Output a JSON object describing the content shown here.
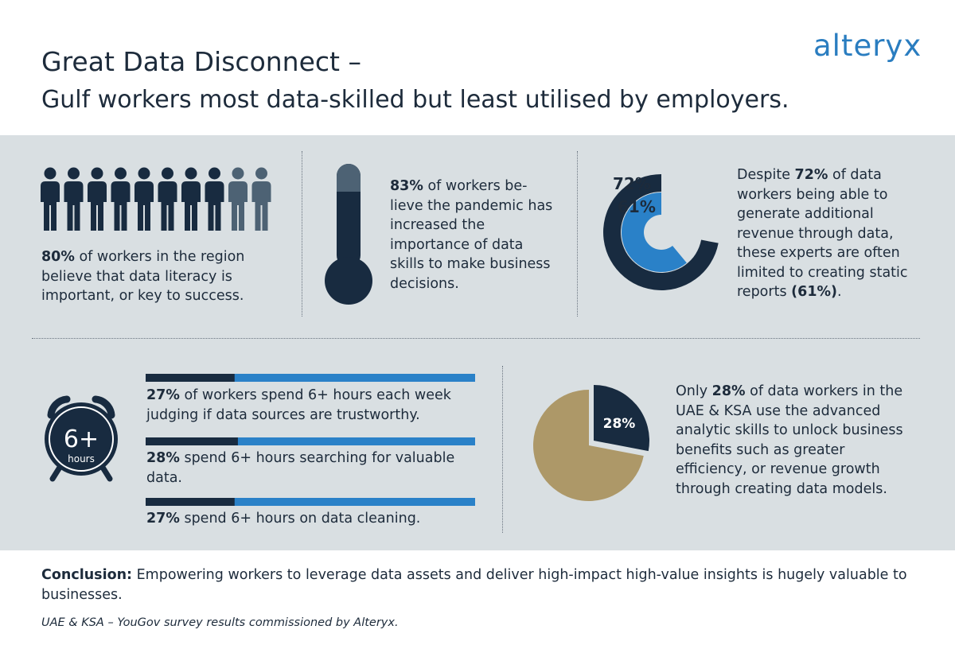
{
  "header": {
    "logo": "alteryx",
    "title_line1": "Great Data Disconnect –",
    "title_line2": "Gulf workers most data-skilled but least utilised by employers."
  },
  "colors": {
    "navy": "#182b40",
    "blue": "#2a81c8",
    "slate": "#4d6274",
    "gold": "#ad9868",
    "panel": "#d9dfe2"
  },
  "stats": {
    "literacy": {
      "icon": "person-icon",
      "highlighted_people": 8,
      "total_people": 10,
      "bold": "80%",
      "text": " of workers in the region believe that data literacy is important, or key to success."
    },
    "pandemic": {
      "icon": "thermometer-icon",
      "bold": "83%",
      "text": " of workers be-lieve the pandemic has increased the importance of data skills to make business decisions."
    },
    "revenue": {
      "outer_label": "72%",
      "inner_label": "61%",
      "outer_value": 72,
      "inner_value": 61,
      "text_a": "Despite ",
      "bold_a": "72%",
      "text_b": " of data workers being able to generate additional revenue through data, these experts are often limited to creating static reports ",
      "bold_b": "(61%)",
      "text_c": "."
    },
    "hours": {
      "clock_value": "6+",
      "clock_unit": "hours",
      "items": [
        {
          "bold": "27%",
          "text": " of workers spend 6+ hours each week judging if data sources are trustworthy.",
          "value": 27
        },
        {
          "bold": "28%",
          "text": " spend 6+ hours searching for valuable data.",
          "value": 28
        },
        {
          "bold": "27%",
          "text": " spend 6+ hours on data cleaning.",
          "value": 27
        }
      ]
    },
    "analytics": {
      "pie_label": "28%",
      "value": 28,
      "text_a": "Only ",
      "bold": "28%",
      "text_b": " of data workers in the UAE & KSA use the advanced analytic skills to unlock business benefits such as greater efficiency, or revenue growth through creating data models."
    }
  },
  "footer": {
    "conclusion_label": "Conclusion:",
    "conclusion_text": " Empowering workers to leverage data assets and deliver high-impact high-value insights is hugely valuable to businesses.",
    "source": "UAE & KSA – YouGov survey results commissioned by Alteryx."
  }
}
